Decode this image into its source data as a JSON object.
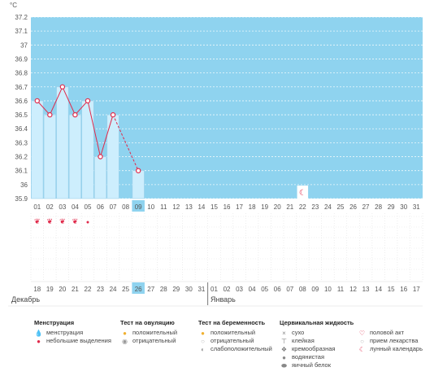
{
  "chart_data": {
    "type": "bar",
    "y_unit": "°C",
    "ylim": [
      35.9,
      37.2
    ],
    "y_ticks": [
      "37.2",
      "37.1",
      "37",
      "36.9",
      "36.8",
      "36.7",
      "36.6",
      "36.5",
      "36.4",
      "36.3",
      "36.2",
      "36.1",
      "36",
      "35.9"
    ],
    "cycle_days": [
      "01",
      "02",
      "03",
      "04",
      "05",
      "06",
      "07",
      "08",
      "09",
      "10",
      "11",
      "12",
      "13",
      "14",
      "15",
      "16",
      "17",
      "18",
      "19",
      "20",
      "21",
      "22",
      "23",
      "24",
      "25",
      "26",
      "27",
      "28",
      "29",
      "30",
      "31"
    ],
    "calendar_dates": [
      "18",
      "19",
      "20",
      "21",
      "22",
      "23",
      "24",
      "25",
      "26",
      "27",
      "28",
      "29",
      "30",
      "31",
      "01",
      "02",
      "03",
      "04",
      "05",
      "06",
      "07",
      "08",
      "09",
      "10",
      "11",
      "12",
      "13",
      "14",
      "15",
      "16",
      "17"
    ],
    "weekend_date_indices": [
      6,
      7,
      13,
      20,
      21,
      27,
      28
    ],
    "today_index": 8,
    "series": [
      {
        "values": [
          36.6,
          36.5,
          36.7,
          36.5,
          36.6,
          36.2,
          36.5,
          null,
          36.1
        ]
      }
    ],
    "dashed_segment": [
      6,
      8
    ],
    "menstruation_days": [
      0,
      1,
      2,
      3
    ],
    "light_discharge_days": [
      4
    ],
    "lunar_marker_day": 21,
    "months": [
      "Декабрь",
      "Январь"
    ],
    "month_divider_index": 14
  },
  "legend": {
    "groups": [
      {
        "title": "Менструация",
        "items": [
          "менструация",
          "небольшие выделения"
        ]
      },
      {
        "title": "Тест на овуляцию",
        "items": [
          "положительный",
          "отрицательный"
        ]
      },
      {
        "title": "Тест на беременность",
        "items": [
          "положительный",
          "отрицательный",
          "слабоположительный"
        ]
      },
      {
        "title": "Цервикальная жидкость",
        "items": [
          "сухо",
          "клейкая",
          "кремообразная",
          "водянистая",
          "яичный белок"
        ]
      },
      {
        "title": "",
        "items": [
          "половой акт",
          "прием лекарства",
          "лунный календарь"
        ]
      }
    ]
  },
  "colors": {
    "plot_bg": "#8fd3ef",
    "bar_fill": "#cdeefd",
    "bar_stroke": "#9cd0ea",
    "line": "#e0294a",
    "weekend": "#e0294a",
    "today_highlight": "#8fd3ef"
  }
}
